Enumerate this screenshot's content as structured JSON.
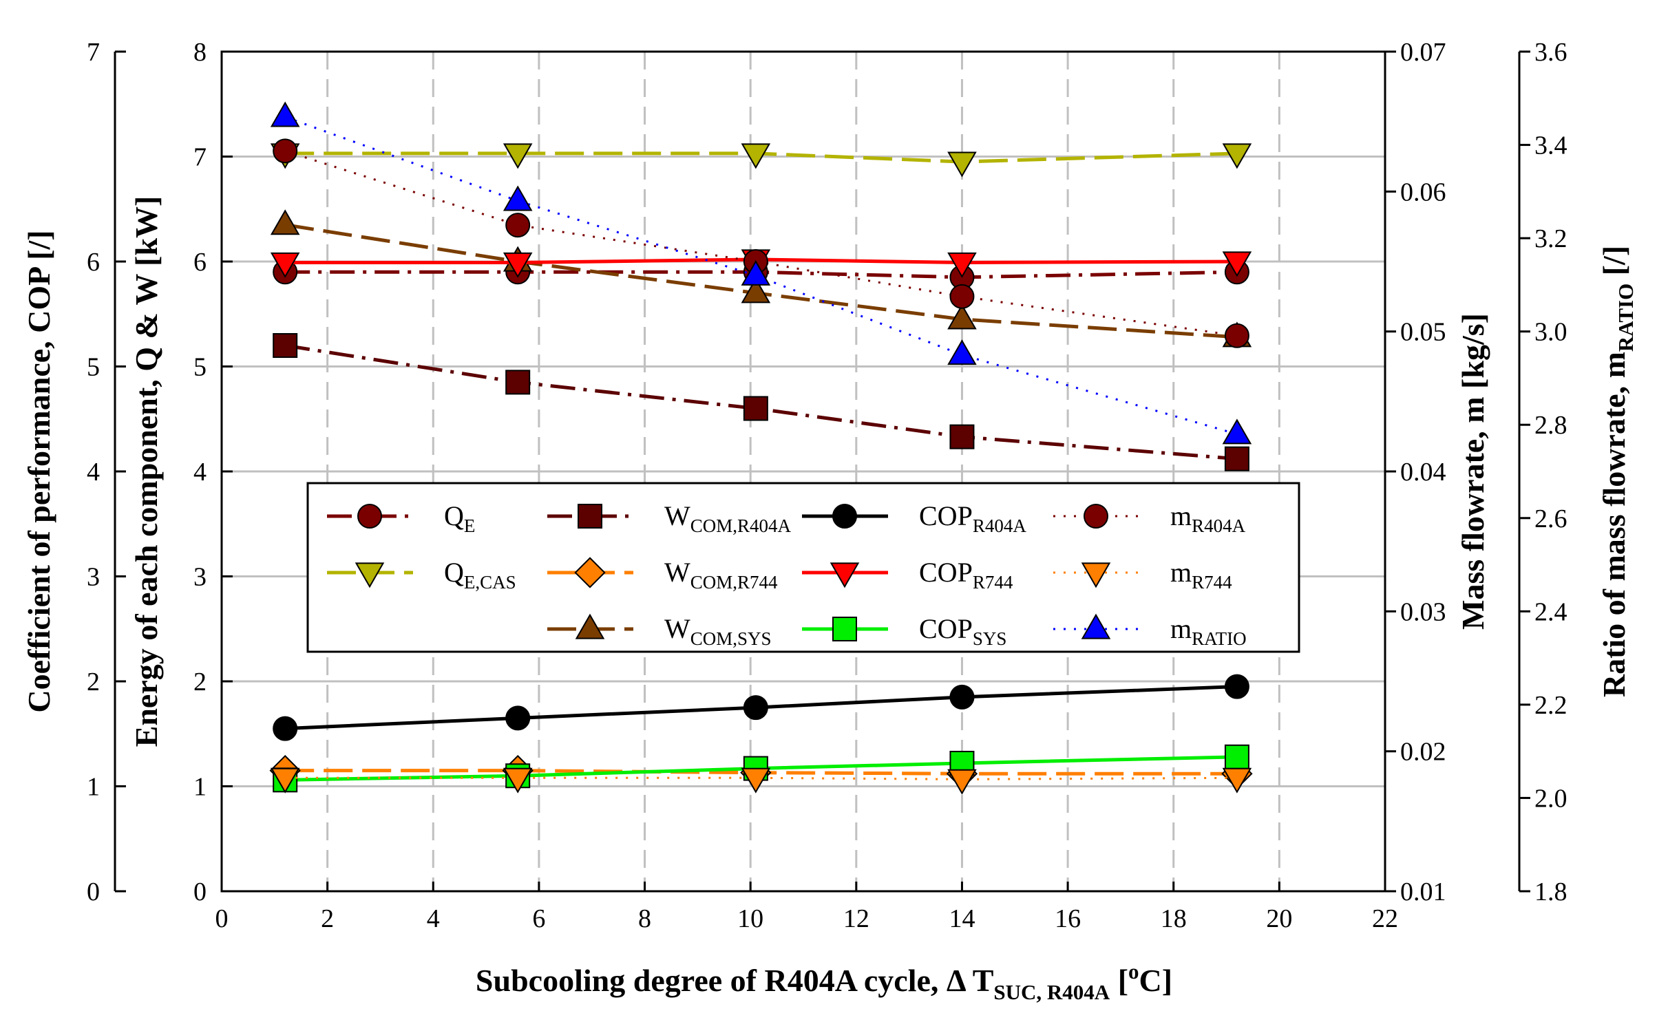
{
  "chart_data": {
    "type": "line",
    "title": "",
    "xlabel": {
      "main": "Subcooling degree of R404A cycle, Δ  T",
      "sub": "SUC, R404A",
      "units_open": " [",
      "sup": "o",
      "units_close": "C]"
    },
    "xlim": [
      0,
      22
    ],
    "x_ticks": [
      "0",
      "2",
      "4",
      "6",
      "8",
      "10",
      "12",
      "14",
      "16",
      "18",
      "20",
      "22"
    ],
    "grid": "vertical dashed, horizontal solid",
    "axes": {
      "cop": {
        "label": "Coefficient of performance,  COP [/]",
        "ticks": [
          {
            "value": 0,
            "label": "0"
          },
          {
            "value": 1,
            "label": "1"
          },
          {
            "value": 2,
            "label": "2"
          },
          {
            "value": 3,
            "label": "3"
          },
          {
            "value": 4,
            "label": "4"
          },
          {
            "value": 5,
            "label": "5"
          },
          {
            "value": 6,
            "label": "6"
          },
          {
            "value": 7,
            "label": "7"
          }
        ],
        "ylim": [
          0,
          7
        ],
        "scale": "piecewise",
        "anchors": [
          [
            0,
            0
          ],
          [
            1,
            1
          ],
          [
            2,
            2
          ],
          [
            3,
            3
          ],
          [
            4,
            4
          ],
          [
            5,
            5
          ],
          [
            6,
            6
          ],
          [
            7,
            8
          ]
        ]
      },
      "energy": {
        "label": "Energy of each component,  Q & W [kW]",
        "ticks": [
          {
            "value": 0,
            "label": "0"
          },
          {
            "value": 1,
            "label": "1"
          },
          {
            "value": 2,
            "label": "2"
          },
          {
            "value": 3,
            "label": "3"
          },
          {
            "value": 4,
            "label": "4"
          },
          {
            "value": 5,
            "label": "5"
          },
          {
            "value": 6,
            "label": "6"
          },
          {
            "value": 7,
            "label": "7"
          },
          {
            "value": 8,
            "label": "8"
          }
        ],
        "ylim": [
          0,
          8
        ]
      },
      "mass": {
        "label": "Mass flowrate,  m [kg/s]",
        "ticks": [
          {
            "value": 0.01,
            "label": "0.01"
          },
          {
            "value": 0.02,
            "label": "0.02"
          },
          {
            "value": 0.03,
            "label": "0.03"
          },
          {
            "value": 0.04,
            "label": "0.04"
          },
          {
            "value": 0.05,
            "label": "0.05"
          },
          {
            "value": 0.06,
            "label": "0.06"
          },
          {
            "value": 0.07,
            "label": "0.07"
          }
        ],
        "ylim": [
          0.01,
          0.07
        ]
      },
      "ratio": {
        "label": "Ratio of mass flowrate,  m",
        "label_sub": "RATIO",
        "label_end": " [/]",
        "ticks": [
          {
            "value": 1.8,
            "label": "1.8"
          },
          {
            "value": 2.0,
            "label": "2.0"
          },
          {
            "value": 2.2,
            "label": "2.2"
          },
          {
            "value": 2.4,
            "label": "2.4"
          },
          {
            "value": 2.6,
            "label": "2.6"
          },
          {
            "value": 2.8,
            "label": "2.8"
          },
          {
            "value": 3.0,
            "label": "3.0"
          },
          {
            "value": 3.2,
            "label": "3.2"
          },
          {
            "value": 3.4,
            "label": "3.4"
          },
          {
            "value": 3.6,
            "label": "3.6"
          }
        ],
        "ylim": [
          1.8,
          3.6
        ]
      }
    },
    "x": [
      1.2,
      5.6,
      10.1,
      14.0,
      19.2
    ],
    "series": [
      {
        "id": "QE",
        "name": "Q",
        "sub": "E",
        "axis": "energy",
        "values": [
          5.9,
          5.9,
          5.9,
          5.85,
          5.9
        ],
        "color": "#7a0000",
        "marker": "circle",
        "line": "dashdot"
      },
      {
        "id": "QECAS",
        "name": "Q",
        "sub": "E,CAS",
        "axis": "energy",
        "values": [
          7.03,
          7.03,
          7.03,
          6.95,
          7.03
        ],
        "color": "#b3b300",
        "marker": "tri-down",
        "line": "dash"
      },
      {
        "id": "WCOMR404A",
        "name": "W",
        "sub": "COM,R404A",
        "axis": "energy",
        "values": [
          5.2,
          4.85,
          4.6,
          4.33,
          4.12
        ],
        "color": "#5c0000",
        "marker": "square",
        "line": "dashdot"
      },
      {
        "id": "WCOMR744",
        "name": "W",
        "sub": "COM,R744",
        "axis": "energy",
        "values": [
          1.15,
          1.15,
          1.13,
          1.12,
          1.12
        ],
        "color": "#ff7f00",
        "marker": "diamond",
        "line": "dash"
      },
      {
        "id": "WCOMSYS",
        "name": "W",
        "sub": "COM,SYS",
        "axis": "energy",
        "values": [
          6.35,
          6.0,
          5.7,
          5.45,
          5.28
        ],
        "color": "#7a3d00",
        "marker": "tri-up",
        "line": "dash"
      },
      {
        "id": "COPR404A",
        "name": "COP",
        "sub": "R404A",
        "axis": "cop",
        "values": [
          1.55,
          1.65,
          1.75,
          1.85,
          1.95
        ],
        "color": "#000000",
        "marker": "circle",
        "line": "solid"
      },
      {
        "id": "COPR744",
        "name": "COP",
        "sub": "R744",
        "axis": "cop",
        "values": [
          5.99,
          5.99,
          6.01,
          5.99,
          6.0
        ],
        "color": "#ff0000",
        "marker": "tri-down",
        "line": "solid"
      },
      {
        "id": "COPSYS",
        "name": "COP",
        "sub": "SYS",
        "axis": "cop",
        "values": [
          1.06,
          1.1,
          1.17,
          1.22,
          1.28
        ],
        "color": "#00ee00",
        "marker": "square",
        "line": "solid"
      },
      {
        "id": "mR404A",
        "name": "m",
        "sub": "R404A",
        "axis": "mass",
        "values": [
          0.0629,
          0.0576,
          0.055,
          0.0525,
          0.0497
        ],
        "color": "#7a0000",
        "marker": "circle",
        "line": "dot"
      },
      {
        "id": "mR744",
        "name": "m",
        "sub": "R744",
        "axis": "mass",
        "values": [
          0.0181,
          0.0181,
          0.0181,
          0.018,
          0.0181
        ],
        "color": "#ff7f00",
        "marker": "tri-down",
        "line": "dot"
      },
      {
        "id": "mRATIO",
        "name": "m",
        "sub": "RATIO",
        "axis": "ratio",
        "values": [
          3.46,
          3.28,
          3.12,
          2.95,
          2.78
        ],
        "color": "#0000ff",
        "marker": "tri-up",
        "line": "dot"
      }
    ],
    "legend": {
      "placement": "center-left, inside plot",
      "columns": [
        [
          "QE",
          "QECAS"
        ],
        [
          "WCOMR404A",
          "WCOMR744",
          "WCOMSYS"
        ],
        [
          "COPR404A",
          "COPR744",
          "COPSYS"
        ],
        [
          "mR404A",
          "mR744",
          "mRATIO"
        ]
      ]
    }
  }
}
